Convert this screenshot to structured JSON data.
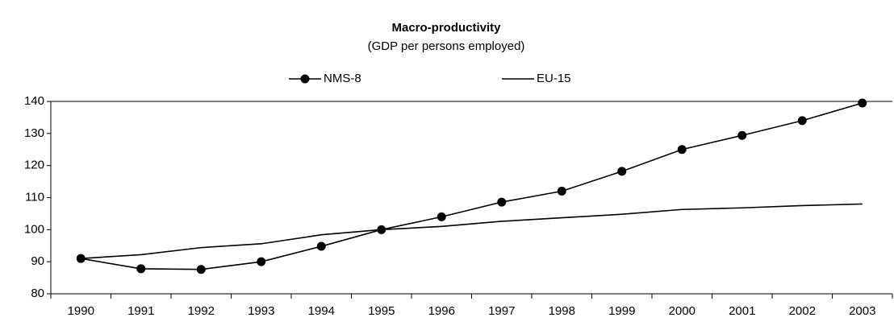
{
  "chart_data": {
    "type": "line",
    "title": "Macro-productivity",
    "subtitle": "(GDP per persons employed)",
    "categories": [
      "1990",
      "1991",
      "1992",
      "1993",
      "1994",
      "1995",
      "1996",
      "1997",
      "1998",
      "1999",
      "2000",
      "2001",
      "2002",
      "2003"
    ],
    "series": [
      {
        "name": "NMS-8",
        "color": "#000000",
        "marker": "circle",
        "values": [
          91,
          87.8,
          87.6,
          90,
          94.8,
          100,
          104,
          108.6,
          112,
          118.2,
          125,
          129.4,
          134,
          139.5
        ]
      },
      {
        "name": "EU-15",
        "color": "#000000",
        "marker": "none",
        "values": [
          91,
          92.2,
          94.4,
          95.6,
          98.4,
          100,
          101,
          102.6,
          103.7,
          104.8,
          106.3,
          106.8,
          107.5,
          108
        ]
      }
    ],
    "ylim": [
      80,
      140
    ],
    "yticks": [
      80,
      90,
      100,
      110,
      120,
      130,
      140
    ],
    "grid": false,
    "legend": "top"
  }
}
